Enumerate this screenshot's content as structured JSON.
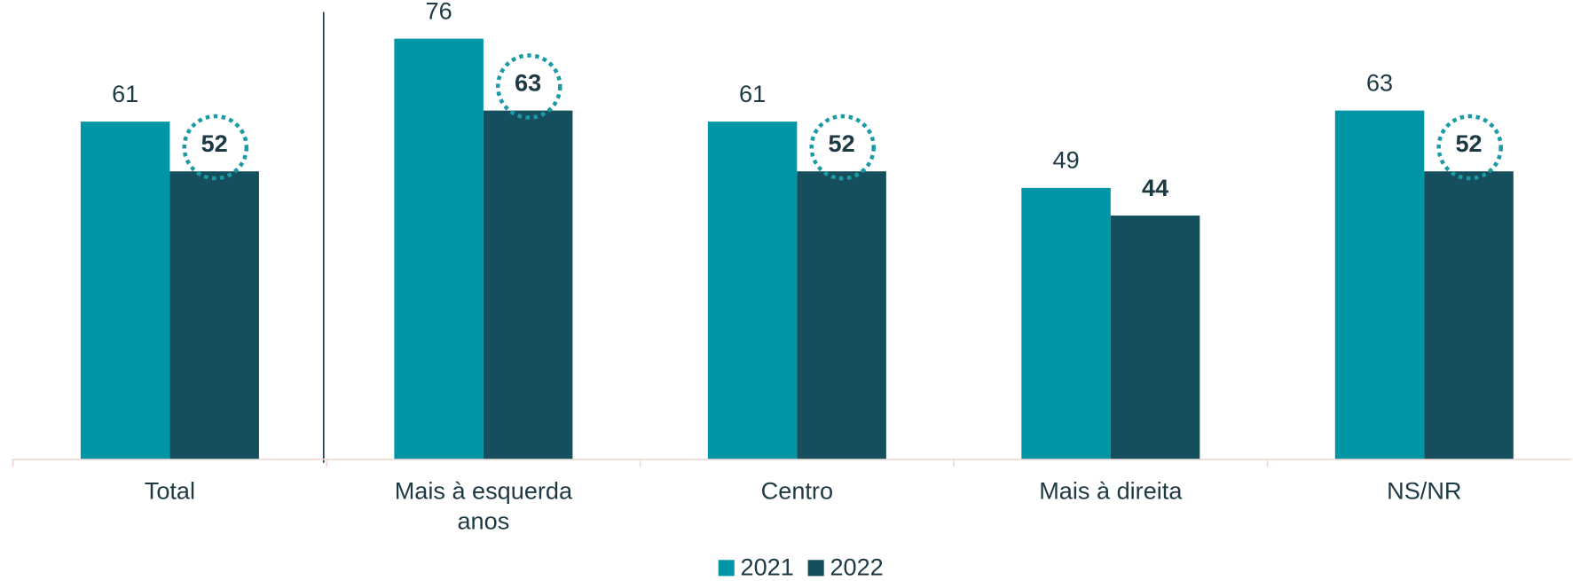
{
  "chart_data": {
    "type": "bar",
    "categories": [
      "Total",
      "Mais à esquerda anos",
      "Centro",
      "Mais à direita",
      "NS/NR"
    ],
    "series": [
      {
        "name": "2021",
        "color": "#0096a6",
        "values": [
          61,
          76,
          61,
          49,
          63
        ]
      },
      {
        "name": "2022",
        "color": "#154e5c",
        "values": [
          52,
          63,
          52,
          44,
          52
        ],
        "circled": [
          true,
          true,
          true,
          false,
          true
        ]
      }
    ],
    "ylim": [
      0,
      83
    ],
    "legend": "bottom"
  }
}
